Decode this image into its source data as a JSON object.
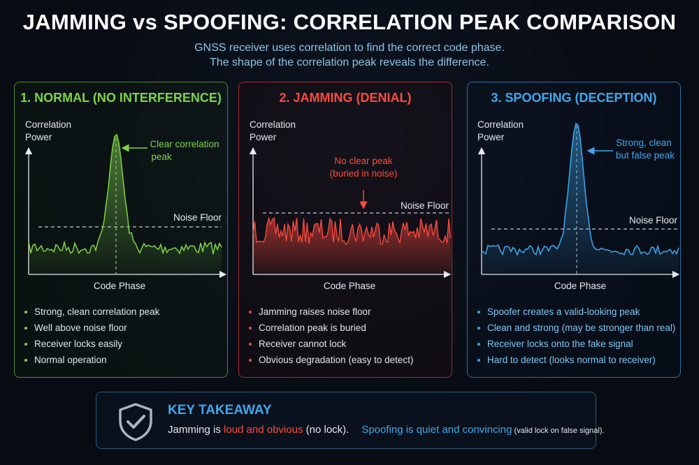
{
  "title": "JAMMING vs SPOOFING: CORRELATION PEAK COMPARISON",
  "subtitle_lines": [
    "GNSS receiver uses correlation to find the correct code phase.",
    "The shape of the correlation peak reveals the difference."
  ],
  "colors": {
    "normal": "#7ed348",
    "jamming": "#ff4a3d",
    "spoofing": "#3fa7ec"
  },
  "panels": [
    {
      "title": "1. NORMAL (NO INTERFERENCE)",
      "y_label_line1": "Correlation",
      "y_label_line2": "Power",
      "x_label": "Code Phase",
      "noise_label": "Noise Floor",
      "annotation_line1": "Clear correlation",
      "annotation_line2": "peak",
      "bullets": [
        "Strong, clean correlation peak",
        "Well above noise floor",
        "Receiver locks easily",
        "Normal operation"
      ]
    },
    {
      "title": "2. JAMMING (DENIAL)",
      "y_label_line1": "Correlation",
      "y_label_line2": "Power",
      "x_label": "Code Phase",
      "noise_label": "Noise Floor",
      "annotation_line1": "No clear peak",
      "annotation_line2": "(buried in noise)",
      "bullets": [
        "Jamming raises noise floor",
        "Correlation peak is buried",
        "Receiver cannot lock",
        "Obvious degradation (easy to detect)"
      ]
    },
    {
      "title": "3. SPOOFING (DECEPTION)",
      "y_label_line1": "Correlation",
      "y_label_line2": "Power",
      "x_label": "Code Phase",
      "noise_label": "Noise Floor",
      "annotation_line1": "Strong, clean",
      "annotation_line2": "but false peak",
      "bullets": [
        "Spoofer creates a valid-looking peak",
        "Clean and strong (may be stronger than real)",
        "Receiver locks onto the fake signal",
        "Hard to detect (looks normal to receiver)"
      ]
    }
  ],
  "takeaway": {
    "icon": "shield-check-icon",
    "title": "KEY TAKEAWAY",
    "jam_prefix": "Jamming is ",
    "jam_highlight": "loud and obvious",
    "jam_suffix": " (no lock).",
    "spoof_highlight": "Spoofing is quiet and convincing",
    "spoof_suffix": " (valid lock on false signal)."
  }
}
